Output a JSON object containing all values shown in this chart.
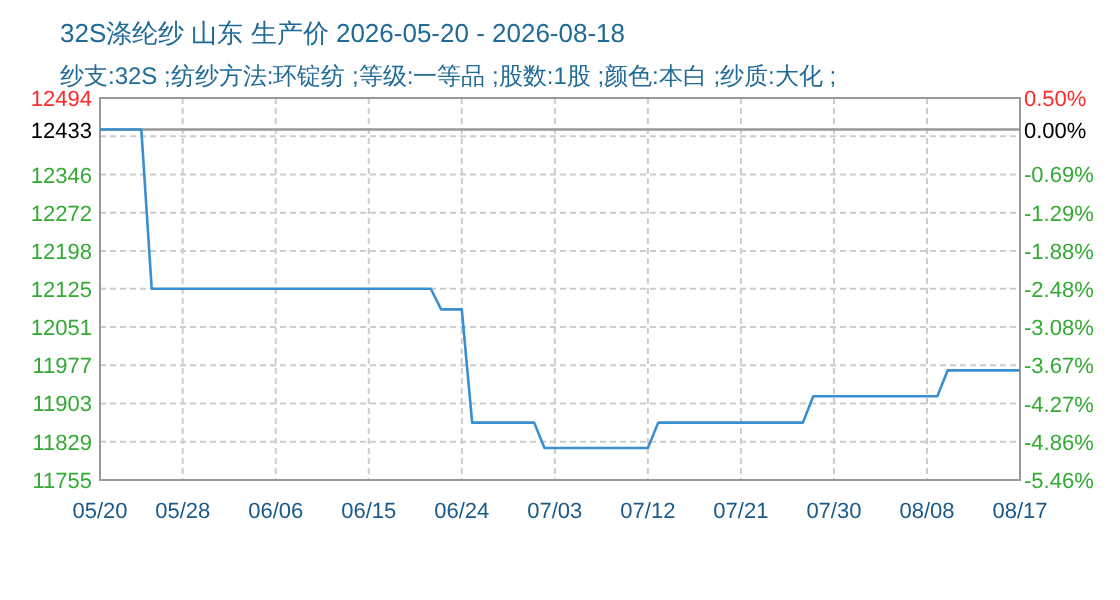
{
  "chart_data": {
    "type": "line",
    "title": "32S涤纶纱 山东 生产价 2026-05-20 - 2026-08-18",
    "subtitle": "纱支:32S ;纺纱方法:环锭纺 ;等级:一等品 ;股数:1股 ;颜色:本白 ;纱质:大化 ;",
    "x": [
      "2026-05-20",
      "2026-05-24",
      "2026-05-25",
      "2026-06-21",
      "2026-06-22",
      "2026-06-24",
      "2026-06-25",
      "2026-07-01",
      "2026-07-02",
      "2026-07-12",
      "2026-07-13",
      "2026-07-27",
      "2026-07-28",
      "2026-08-09",
      "2026-08-10",
      "2026-08-17"
    ],
    "series": [
      {
        "color": "#3a8fd0",
        "values": [
          12433,
          12433,
          12125,
          12125,
          12085,
          12085,
          11866,
          11866,
          11817,
          11817,
          11866,
          11866,
          11917,
          11917,
          11967,
          11967
        ]
      }
    ],
    "xlim": [
      "2026-05-20",
      "2026-08-17"
    ],
    "xticks": [
      {
        "value": "2026-05-20",
        "label": "05/20"
      },
      {
        "value": "2026-05-28",
        "label": "05/28"
      },
      {
        "value": "2026-06-06",
        "label": "06/06"
      },
      {
        "value": "2026-06-15",
        "label": "06/15"
      },
      {
        "value": "2026-06-24",
        "label": "06/24"
      },
      {
        "value": "2026-07-03",
        "label": "07/03"
      },
      {
        "value": "2026-07-12",
        "label": "07/12"
      },
      {
        "value": "2026-07-21",
        "label": "07/21"
      },
      {
        "value": "2026-07-30",
        "label": "07/30"
      },
      {
        "value": "2026-08-08",
        "label": "08/08"
      },
      {
        "value": "2026-08-17",
        "label": "08/17"
      }
    ],
    "ylim": [
      11755,
      12494
    ],
    "yticks": [
      11755,
      11829,
      11903,
      11977,
      12051,
      12125,
      12198,
      12272,
      12346,
      {
        "value": 12420,
        "label": null
      },
      12494
    ],
    "y2lim": [
      -5.46,
      0.5
    ],
    "y2ticks": [
      {
        "value": -5.46,
        "label": "-5.46%"
      },
      {
        "value": -4.86,
        "label": "-4.86%"
      },
      {
        "value": -4.27,
        "label": "-4.27%"
      },
      {
        "value": -3.67,
        "label": "-3.67%"
      },
      {
        "value": -3.08,
        "label": "-3.08%"
      },
      {
        "value": -2.48,
        "label": "-2.48%"
      },
      {
        "value": -1.88,
        "label": "-1.88%"
      },
      {
        "value": -1.29,
        "label": "-1.29%"
      },
      {
        "value": -0.69,
        "label": "-0.69%"
      },
      {
        "value": 0,
        "label": "0.00%"
      },
      {
        "value": 0.5,
        "label": "0.50%"
      }
    ],
    "ref_lines": [
      {
        "axis": "y",
        "value": 12433,
        "label": "12433",
        "color": "#999999"
      }
    ],
    "grid": true
  }
}
